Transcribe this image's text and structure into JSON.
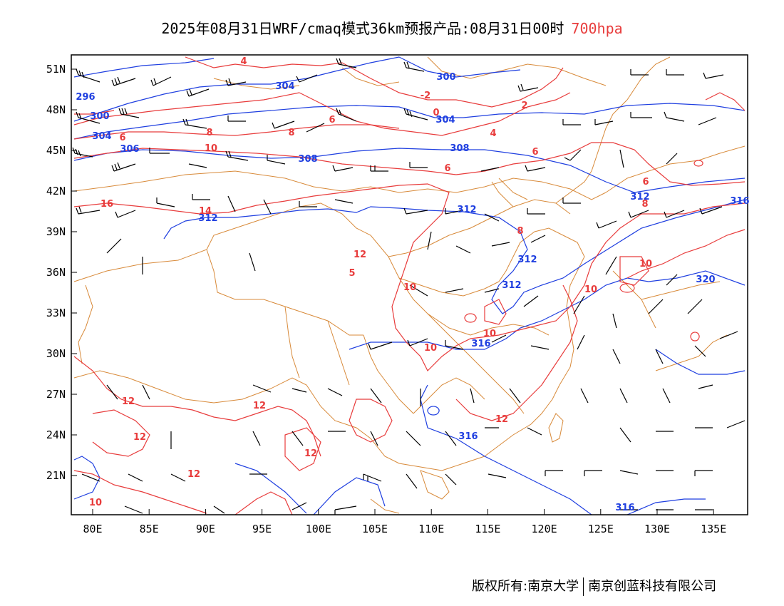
{
  "title": {
    "text": "2025年08月31日WRF/cmaq模式36km预报产品:08月31日00时",
    "level": "700hpa",
    "level_color": "#e83c3c"
  },
  "colors": {
    "temperature": "#e83c3c",
    "height": "#1f3fe0",
    "boundary": "#d88a3a",
    "barb": "#000000"
  },
  "axes": {
    "x_ticks": [
      "80E",
      "85E",
      "90E",
      "95E",
      "100E",
      "105E",
      "110E",
      "115E",
      "120E",
      "125E",
      "130E",
      "135E"
    ],
    "y_ticks": [
      "51N",
      "48N",
      "45N",
      "42N",
      "39N",
      "36N",
      "33N",
      "30N",
      "27N",
      "24N",
      "21N"
    ]
  },
  "contour_labels": {
    "height": [
      "300",
      "296",
      "304",
      "300",
      "304",
      "304",
      "306",
      "308",
      "308",
      "312",
      "312",
      "312",
      "312",
      "312",
      "316",
      "316",
      "316",
      "316",
      "320"
    ],
    "temperature": [
      "4",
      "-2",
      "0",
      "2",
      "4",
      "6",
      "6",
      "8",
      "6",
      "8",
      "10",
      "6",
      "6",
      "8",
      "16",
      "14",
      "12",
      "5",
      "8",
      "10",
      "10",
      "10",
      "10",
      "10",
      "12",
      "12",
      "12",
      "12",
      "12",
      "12",
      "10"
    ]
  },
  "copyright": {
    "left": "版权所有:南京大学",
    "right": "南京创蓝科技有限公司"
  }
}
